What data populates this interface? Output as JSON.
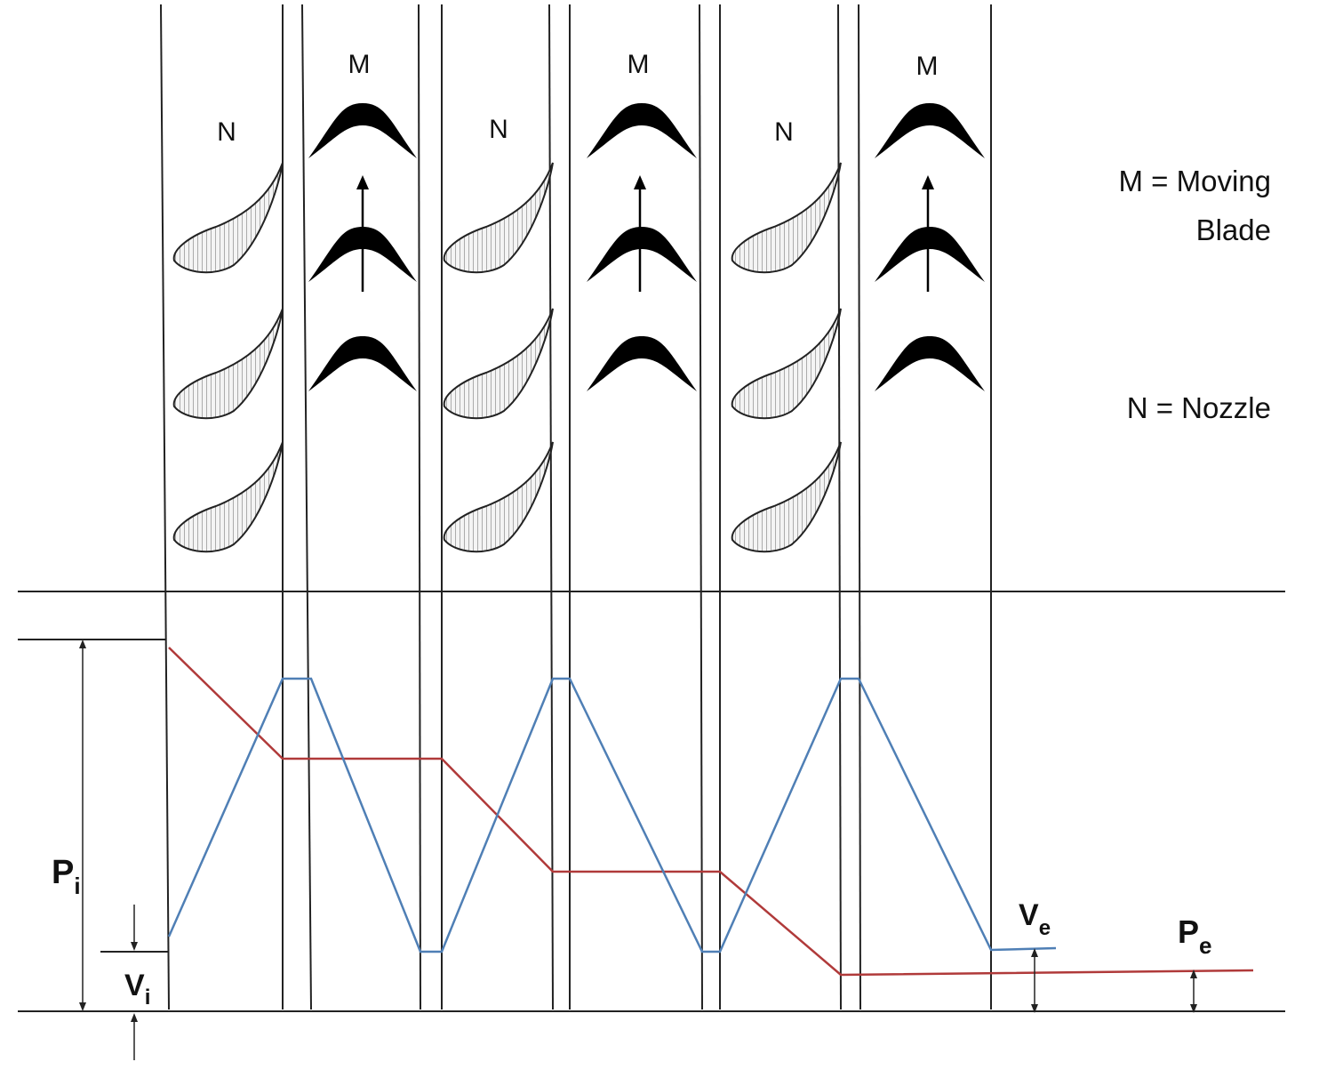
{
  "labels": {
    "moving_short": "M",
    "nozzle_short": "N",
    "legend_moving_line1": "M = Moving",
    "legend_moving_line2": "Blade",
    "legend_nozzle": "N = Nozzle",
    "pressure_inlet_main": "P",
    "pressure_inlet_sub": "i",
    "velocity_inlet_main": "V",
    "velocity_inlet_sub": "i",
    "velocity_exit_main": "V",
    "velocity_exit_sub": "e",
    "pressure_exit_main": "P",
    "pressure_exit_sub": "e"
  },
  "stages": [
    {
      "nozzle": "N",
      "moving": "M"
    },
    {
      "nozzle": "N",
      "moving": "M"
    },
    {
      "nozzle": "N",
      "moving": "M"
    }
  ],
  "colors": {
    "pressure_line": "#b03a3a",
    "velocity_line": "#4f7fb5",
    "lines": "#222222",
    "blade_fill": "#000000"
  }
}
